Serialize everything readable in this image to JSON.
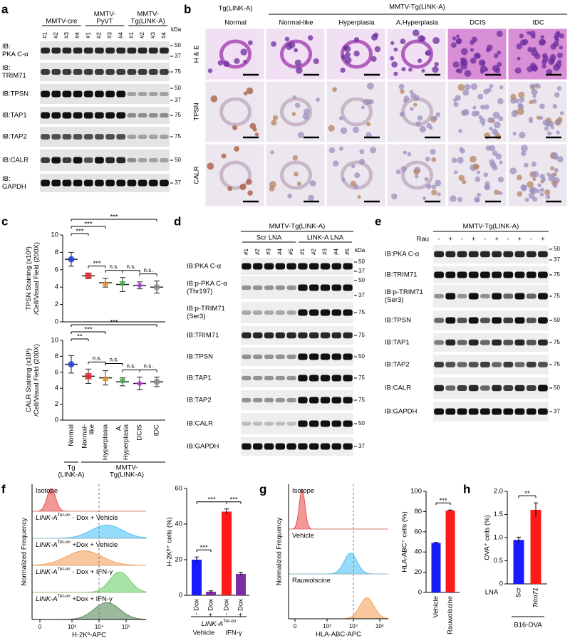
{
  "panel_labels": [
    "a",
    "b",
    "c",
    "d",
    "e",
    "f",
    "g",
    "h"
  ],
  "a": {
    "groups": [
      [
        "MMTV-cre"
      ],
      [
        "MMTV-",
        "PyVT"
      ],
      [
        "MMTV-",
        "Tg(LINK-A)"
      ]
    ],
    "lanes": [
      "#1",
      "#2",
      "#3",
      "#4",
      "#1",
      "#2",
      "#3",
      "#4",
      "#1",
      "#2",
      "#3",
      "#4"
    ],
    "kda": "kDa",
    "rows": [
      {
        "label": [
          "IB:",
          "PKA C-α"
        ],
        "markers": [
          50,
          37
        ]
      },
      {
        "label": [
          "IB:",
          "TRIM71"
        ],
        "markers": [
          75
        ]
      },
      {
        "label": [
          "IB:TPSN"
        ],
        "markers": [
          50,
          37
        ]
      },
      {
        "label": [
          "IB:TAP1"
        ],
        "markers": [
          75
        ]
      },
      {
        "label": [
          "IB:TAP2"
        ],
        "markers": [
          75
        ]
      },
      {
        "label": [
          "IB:CALR"
        ],
        "markers": [
          50
        ]
      },
      {
        "label": [
          "IB:",
          "GAPDH"
        ],
        "markers": [
          37
        ]
      }
    ]
  },
  "b": {
    "top_left": "Tg(LINK-A)",
    "top_right": "MMTV-Tg(LINK-A)",
    "columns": [
      "Normal",
      "Normal-like",
      "Hyperplasia",
      "A.Hyperplasia",
      "DCIS",
      "IDC"
    ],
    "rows": [
      "H & E",
      "TPSN",
      "CALR"
    ]
  },
  "c": {
    "categories": [
      [
        "Normal"
      ],
      [
        "Normal-",
        "like"
      ],
      [
        "Hyperplasia"
      ],
      [
        "A.",
        "Hyperplasia"
      ],
      [
        "DCIS"
      ],
      [
        "IDC"
      ]
    ],
    "groups": [
      [
        "Tg",
        "(LINK-A)"
      ],
      [
        "MMTV-",
        "Tg(LINK-A)"
      ]
    ],
    "colors": [
      "#1c3fd6",
      "#e0282e",
      "#f08a24",
      "#2db34a",
      "#b03cd3",
      "#8c8c8c"
    ],
    "plots": [
      {
        "ylabel": [
          "TPSN Staining (x10³)",
          "/Cell/Visual Field (200X)"
        ],
        "ylim": [
          0,
          10
        ],
        "yticks": [
          0,
          2,
          4,
          6,
          8,
          10
        ],
        "means": [
          7.2,
          5.3,
          4.5,
          4.3,
          4.2,
          4.0
        ],
        "errors": [
          0.8,
          0.3,
          0.5,
          0.8,
          0.4,
          0.7
        ],
        "significance": [
          "***",
          "***",
          "***",
          "***",
          "n.s.",
          "n.s.",
          "n.s."
        ]
      },
      {
        "ylabel": [
          "CALR Staining (x10³)",
          "/Cell/Visual Field (200X)"
        ],
        "ylim": [
          0,
          10
        ],
        "yticks": [
          0,
          2,
          4,
          6,
          8,
          10
        ],
        "means": [
          7.0,
          5.5,
          5.3,
          4.8,
          4.6,
          4.8
        ],
        "errors": [
          1.1,
          0.9,
          0.9,
          0.5,
          0.8,
          0.6
        ],
        "significance": [
          "**",
          "***",
          "***",
          "n.s.",
          "n.s.",
          "n.s.",
          "n.s."
        ]
      }
    ]
  },
  "d": {
    "header": "MMTV-Tg(LINK-A)",
    "subgroups": [
      "Scr LNA",
      "LINK-A LNA"
    ],
    "lanes": [
      "#1",
      "#2",
      "#3",
      "#4",
      "#5",
      "#1",
      "#2",
      "#3",
      "#4",
      "#5"
    ],
    "kda": "kDa",
    "rows": [
      {
        "label": [
          "IB:PKA C-α"
        ],
        "markers": [
          50,
          37
        ]
      },
      {
        "label": [
          "IB:p-PKA C-α",
          "(Thr197)"
        ],
        "markers": [
          50,
          37
        ]
      },
      {
        "label": [
          "IB:p-TRIM71",
          "(Ser3)"
        ],
        "markers": [
          75
        ]
      },
      {
        "label": [
          "IB:TRIM71"
        ],
        "markers": [
          75
        ]
      },
      {
        "label": [
          "IB:TPSN"
        ],
        "markers": [
          50
        ]
      },
      {
        "label": [
          "IB:TAP1"
        ],
        "markers": [
          75
        ]
      },
      {
        "label": [
          "IB:TAP2"
        ],
        "markers": [
          75
        ]
      },
      {
        "label": [
          "IB:CALR"
        ],
        "markers": [
          50
        ]
      },
      {
        "label": [
          "IB:GAPDH"
        ],
        "markers": [
          37
        ]
      }
    ]
  },
  "e": {
    "header": "MMTV-Tg(LINK-A)",
    "treatment": "Rau",
    "lanes": [
      "-",
      "+",
      "-",
      "+",
      "-",
      "+",
      "-",
      "+",
      "-",
      "+"
    ],
    "rows": [
      {
        "label": [
          "IB:PKA C-α"
        ],
        "markers": [
          50,
          37
        ]
      },
      {
        "label": [
          "IB:TRIM71"
        ],
        "markers": [
          75
        ]
      },
      {
        "label": [
          "IB:p-TRIM71",
          "(Ser3)"
        ],
        "markers": [
          75
        ]
      },
      {
        "label": [
          "IB:TPSN"
        ],
        "markers": [
          50
        ]
      },
      {
        "label": [
          "IB:TAP1"
        ],
        "markers": [
          75
        ]
      },
      {
        "label": [
          "IB:TAP2"
        ],
        "markers": [
          75
        ]
      },
      {
        "label": [
          "IB:CALR"
        ],
        "markers": [
          50
        ]
      },
      {
        "label": [
          "IB:GAPDH"
        ],
        "markers": [
          37
        ]
      }
    ]
  },
  "f": {
    "histogram": {
      "ylabel": "Normalized Frequency",
      "xlabel": "H-2Kᵇ-APC",
      "xticks": [
        0,
        {
          "value": 1000,
          "label": "10³"
        },
        {
          "value": 10000,
          "label": "10⁴"
        },
        {
          "value": 100000,
          "label": "10⁵"
        }
      ],
      "tracks": [
        {
          "label": {
            "name": "Isotope"
          },
          "color": "#e8524f"
        },
        {
          "label": {
            "name": "LINK-A",
            "sup": "Tet-on",
            "rest": " - Dox + Vehicle"
          },
          "color": "#4fc3f7"
        },
        {
          "label": {
            "name": "LINK-A",
            "sup": "Tet-on",
            "rest": " +Dox + Vehicle"
          },
          "color": "#f5a25d"
        },
        {
          "label": {
            "name": "LINK-A",
            "sup": "Tet-on",
            "rest": " - Dox + IFN-γ"
          },
          "color": "#6ccf6c"
        },
        {
          "label": {
            "name": "LINK-A",
            "sup": "Tet-on",
            "rest": " +Dox + IFN-γ"
          },
          "color": "#5c8a5c"
        }
      ]
    },
    "bars": {
      "type": "bar",
      "ylabel": "H-2Kᵇ⁺ cells (%)",
      "ylim": [
        0,
        60
      ],
      "yticks": [
        0,
        20,
        40,
        60
      ],
      "categories": [
        "- Dox",
        "+ Dox",
        "- Dox",
        "+ Dox"
      ],
      "values": [
        20,
        2,
        47,
        12
      ],
      "errors": [
        1.5,
        0.5,
        1.5,
        0.8
      ],
      "colors": [
        "#1a1aff",
        "#7b2fa0",
        "#ff1a1a",
        "#7b2fa0"
      ],
      "significance": [
        "***",
        "***",
        "***"
      ],
      "group_title": {
        "name": "LINK-A",
        "sup": "Tet-on"
      },
      "groups": [
        "Vehicle",
        "IFN-γ"
      ]
    }
  },
  "g": {
    "histogram": {
      "ylabel": "Normalized Frequency",
      "xlabel": "HLA-ABC-APC",
      "xticks": [
        0,
        {
          "value": 1000,
          "label": "10³"
        },
        {
          "value": 10000,
          "label": "10⁴"
        },
        {
          "value": 100000,
          "label": "10⁵"
        }
      ],
      "tracks": [
        {
          "label": {
            "name": "Isotope"
          },
          "color": "#e8524f"
        },
        {
          "label": {
            "name": "Vehicle"
          },
          "color": "#4fc3f7"
        },
        {
          "label": {
            "name": "Rauwolscine"
          },
          "color": "#f5a25d"
        }
      ]
    },
    "bars": {
      "type": "bar",
      "ylabel": "HLA-ABC⁺ cells (%)",
      "ylim": [
        0,
        100
      ],
      "yticks": [
        0,
        20,
        40,
        60,
        80,
        100
      ],
      "categories": [
        "Vehicle",
        "Rauwolscine"
      ],
      "values": [
        49,
        81
      ],
      "errors": [
        0.5,
        0.5
      ],
      "colors": [
        "#1a1aff",
        "#ff1a1a"
      ],
      "significance": [
        "***"
      ]
    }
  },
  "h": {
    "bars": {
      "type": "bar",
      "ylabel": "OVA⁺ cells (%)",
      "ylim": [
        0,
        2
      ],
      "yticks": [
        0,
        0.5,
        {
          "value": 1,
          "label": "1.0"
        },
        1.5,
        {
          "value": 2,
          "label": "2.0"
        }
      ],
      "categories": [
        "Scr",
        "Trim71"
      ],
      "values": [
        0.95,
        1.6
      ],
      "errors": [
        0.06,
        0.15
      ],
      "colors": [
        "#1a1aff",
        "#ff1a1a"
      ],
      "significance": [
        "**"
      ],
      "axis_title": "LNA",
      "group": "B16-OVA"
    }
  }
}
